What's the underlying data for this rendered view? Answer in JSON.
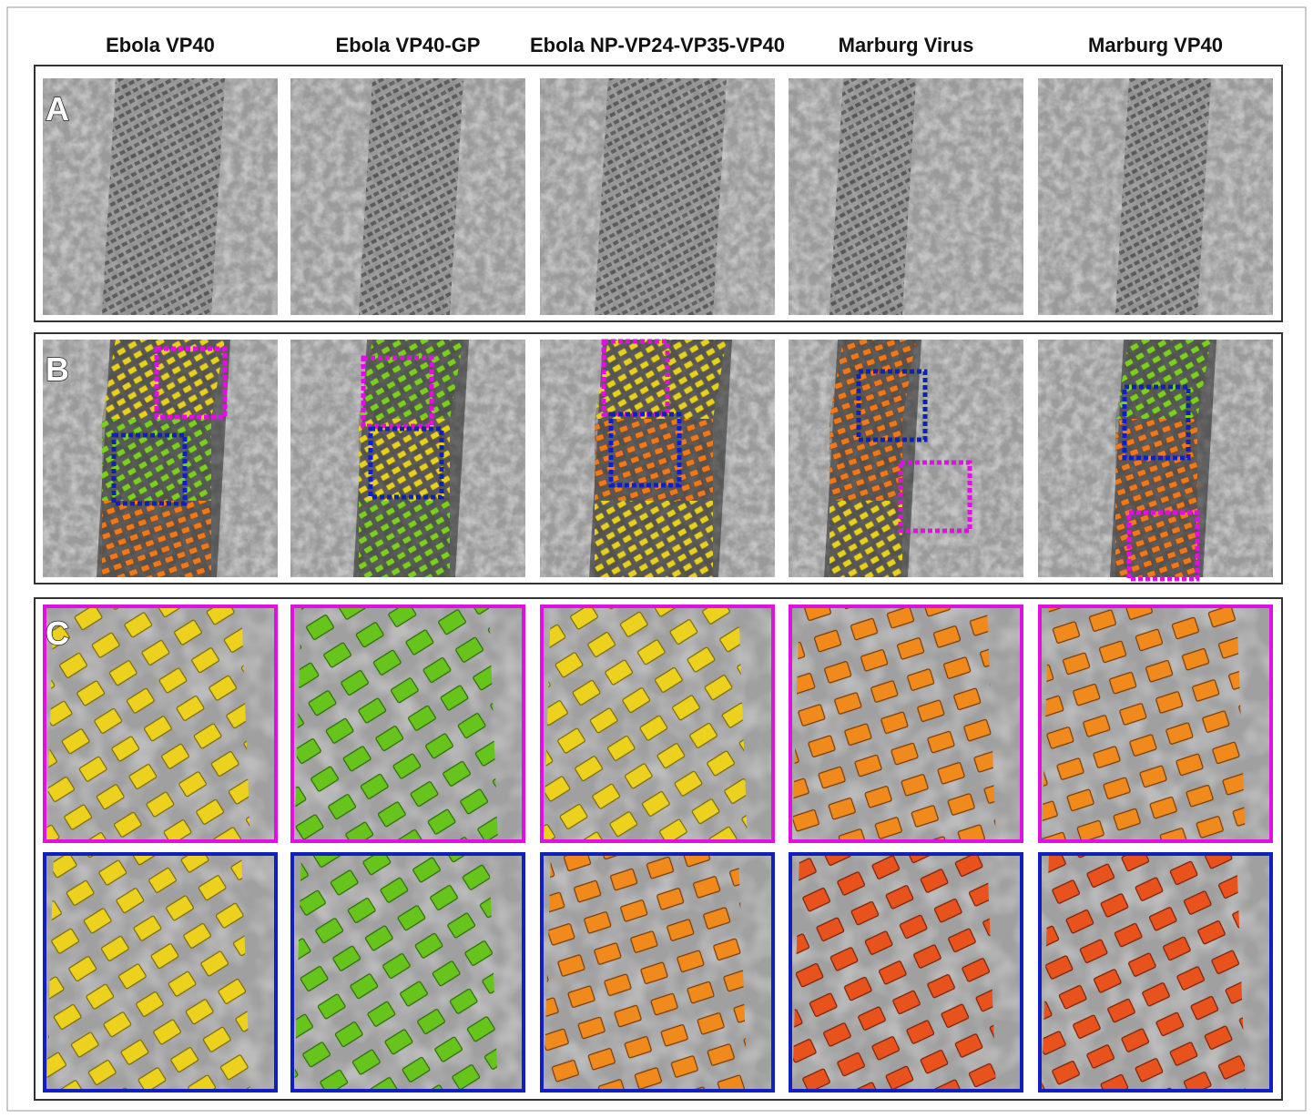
{
  "headers": [
    "Ebola VP40",
    "Ebola VP40-GP",
    "Ebola NP-VP24-VP35-VP40",
    "Marburg Virus",
    "Marburg VP40"
  ],
  "panels": [
    {
      "label": "A"
    },
    {
      "label": "B"
    },
    {
      "label": "C"
    }
  ]
}
